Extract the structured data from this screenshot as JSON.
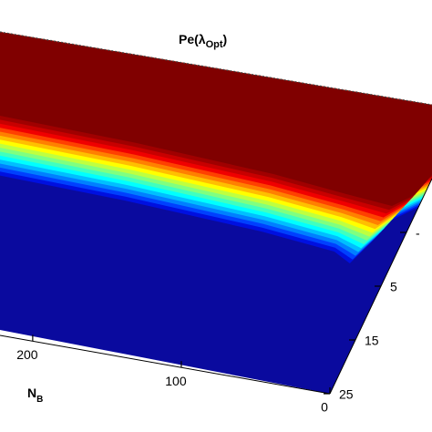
{
  "chart_data": {
    "type": "surface",
    "title": {
      "main": "Pe(λ",
      "sub": "Opt",
      "close": ")"
    },
    "x_label": {
      "main": "N",
      "sub": "B"
    },
    "xlim": [
      0,
      222
    ],
    "xticks": [
      200,
      100,
      0
    ],
    "ylim": [
      25,
      -15
    ],
    "yticks": [
      25,
      15,
      5,
      {
        "value": -5,
        "label": "-"
      }
    ],
    "base_color": "#0a0a9e",
    "colormap": [
      "#800000",
      "#a00000",
      "#c80000",
      "#f00000",
      "#ff4000",
      "#ff8000",
      "#ffbf00",
      "#ffff00",
      "#bfff40",
      "#80ff80",
      "#40ffbf",
      "#00ffff",
      "#00bfff",
      "#0080ff",
      "#0040ff",
      "#0010e0"
    ]
  }
}
